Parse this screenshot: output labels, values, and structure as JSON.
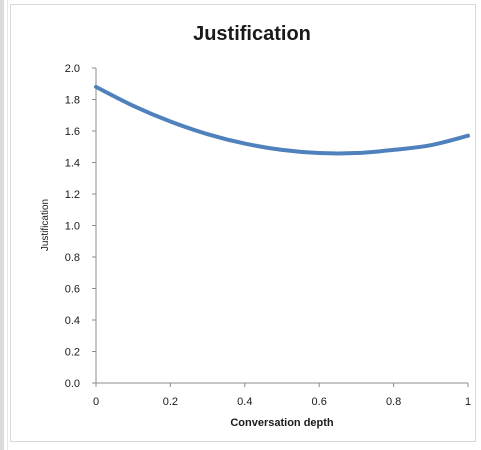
{
  "chart_data": {
    "type": "line",
    "title": "Justification",
    "xlabel": "Conversation depth",
    "ylabel": "Justification",
    "xlim": [
      0,
      1
    ],
    "ylim": [
      0,
      2
    ],
    "x_ticks": [
      "0",
      "0.2",
      "0.4",
      "0.6",
      "0.8",
      "1"
    ],
    "y_ticks": [
      "0.0",
      "0.2",
      "0.4",
      "0.6",
      "0.8",
      "1.0",
      "1.2",
      "1.4",
      "1.6",
      "1.8",
      "2.0"
    ],
    "grid": false,
    "series": [
      {
        "color": "#4f81bd",
        "x": [
          0,
          0.1,
          0.2,
          0.3,
          0.4,
          0.5,
          0.6,
          0.7,
          0.8,
          0.9,
          1.0
        ],
        "y": [
          1.88,
          1.76,
          1.66,
          1.58,
          1.52,
          1.48,
          1.46,
          1.46,
          1.48,
          1.51,
          1.57
        ]
      }
    ]
  }
}
